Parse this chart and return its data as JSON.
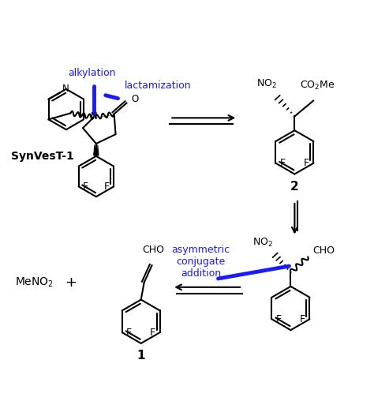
{
  "bg_color": "#ffffff",
  "figsize": [
    4.74,
    5.27
  ],
  "dpi": 100,
  "text_color": "#000000",
  "blue_color": "#1a1aff",
  "label_alkylation": "alkylation",
  "label_lactamization": "lactamization",
  "label_asymmetric": "asymmetric\nconjugate\naddition",
  "label_synvest": "SynVesT-1",
  "label_2": "2",
  "label_1": "1"
}
